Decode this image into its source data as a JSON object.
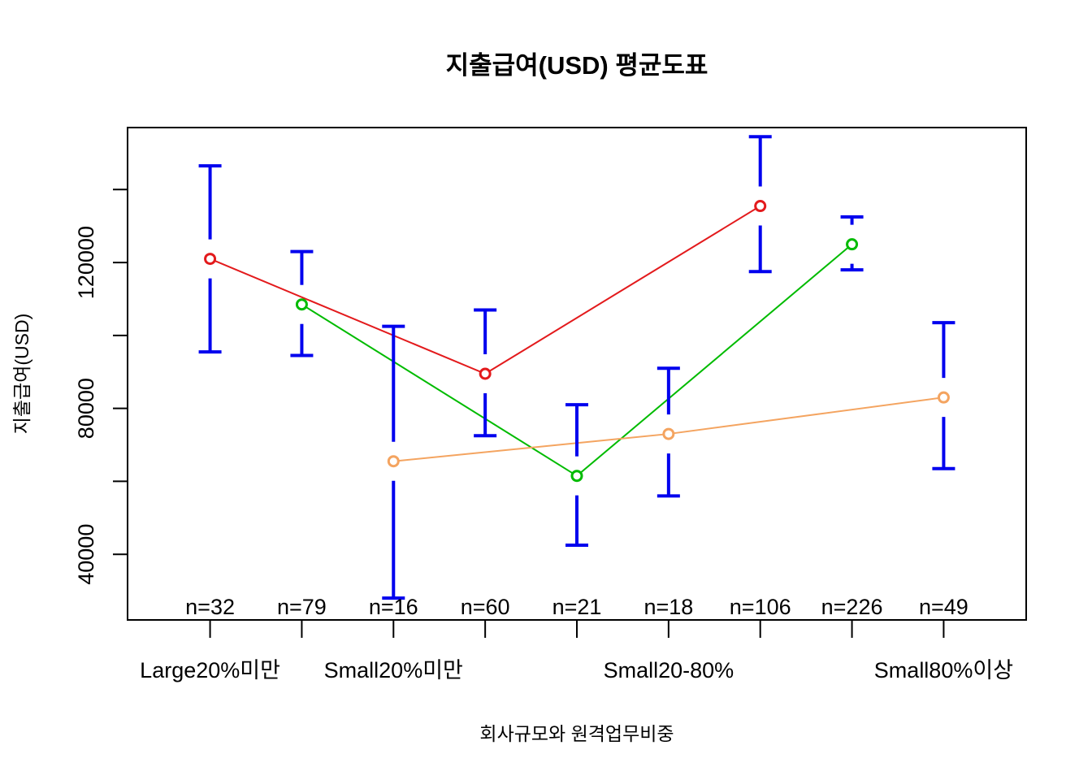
{
  "chart_data": {
    "type": "line",
    "title": "지출급여(USD) 평균도표",
    "xlabel": "회사규모와 원격업무비중",
    "ylabel": "지출급여(USD)",
    "ylim": [
      22000,
      157000
    ],
    "y_ticks": [
      40000,
      80000,
      120000
    ],
    "y_tick_labels": [
      "40000",
      "80000",
      "120000"
    ],
    "x_positions": [
      1,
      2,
      3,
      4,
      5,
      6,
      7,
      8,
      9
    ],
    "x_tick_labels": [
      {
        "x": 1,
        "label": "Large20%미만"
      },
      {
        "x": 3,
        "label": "Small20%미만"
      },
      {
        "x": 6,
        "label": "Small20-80%"
      },
      {
        "x": 9,
        "label": "Small80%이상"
      }
    ],
    "n_labels": [
      "n=32",
      "n=79",
      "n=16",
      "n=60",
      "n=21",
      "n=18",
      "n=106",
      "n=226",
      "n=49"
    ],
    "error_bars": [
      {
        "x": 1,
        "low": 95500,
        "high": 146500
      },
      {
        "x": 2,
        "low": 94500,
        "high": 123000
      },
      {
        "x": 3,
        "low": 28000,
        "high": 102500
      },
      {
        "x": 4,
        "low": 72500,
        "high": 107000
      },
      {
        "x": 5,
        "low": 42500,
        "high": 81000
      },
      {
        "x": 6,
        "low": 56000,
        "high": 91000
      },
      {
        "x": 7,
        "low": 117500,
        "high": 154500
      },
      {
        "x": 8,
        "low": 118000,
        "high": 132500
      },
      {
        "x": 9,
        "low": 63500,
        "high": 103500
      }
    ],
    "series": [
      {
        "color": "#e31a1c",
        "points": [
          {
            "x": 1,
            "y": 121000
          },
          {
            "x": 4,
            "y": 89500
          },
          {
            "x": 7,
            "y": 135500
          }
        ]
      },
      {
        "color": "#00bb00",
        "points": [
          {
            "x": 2,
            "y": 108500
          },
          {
            "x": 5,
            "y": 61500
          },
          {
            "x": 8,
            "y": 125000
          }
        ]
      },
      {
        "color": "#f4a460",
        "points": [
          {
            "x": 3,
            "y": 65500
          },
          {
            "x": 6,
            "y": 73000
          },
          {
            "x": 9,
            "y": 83000
          }
        ]
      }
    ],
    "error_bar_color": "#0000ee",
    "grid": false,
    "legend": "none"
  }
}
